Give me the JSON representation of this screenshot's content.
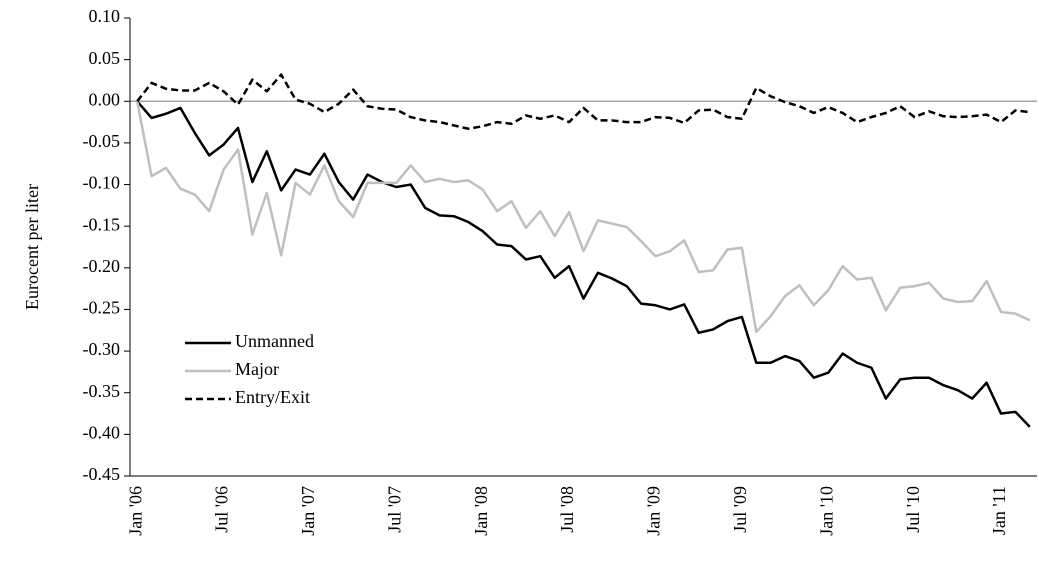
{
  "chart_data": {
    "type": "line",
    "y_label": "Eurocent per liter",
    "categories": [
      "Jan '06",
      null,
      null,
      null,
      null,
      null,
      "Jul '06",
      null,
      null,
      null,
      null,
      null,
      "Jan '07",
      null,
      null,
      null,
      null,
      null,
      "Jul '07",
      null,
      null,
      null,
      null,
      null,
      "Jan '08",
      null,
      null,
      null,
      null,
      null,
      "Jul '08",
      null,
      null,
      null,
      null,
      null,
      "Jan '09",
      null,
      null,
      null,
      null,
      null,
      "Jul '09",
      null,
      null,
      null,
      null,
      null,
      "Jan '10",
      null,
      null,
      null,
      null,
      null,
      "Jul '10",
      null,
      null,
      null,
      null,
      null,
      "Jan '11",
      null,
      null
    ],
    "series": [
      {
        "name": "Unmanned",
        "color": "#000000",
        "dash": "solid",
        "values": [
          0.0,
          -0.02,
          -0.015,
          -0.008,
          -0.038,
          -0.065,
          -0.052,
          -0.032,
          -0.097,
          -0.06,
          -0.107,
          -0.082,
          -0.088,
          -0.063,
          -0.097,
          -0.118,
          -0.088,
          -0.097,
          -0.103,
          -0.1,
          -0.128,
          -0.137,
          -0.138,
          -0.145,
          -0.156,
          -0.172,
          -0.174,
          -0.19,
          -0.186,
          -0.212,
          -0.198,
          -0.237,
          -0.206,
          -0.213,
          -0.222,
          -0.243,
          -0.245,
          -0.25,
          -0.244,
          -0.278,
          -0.274,
          -0.264,
          -0.259,
          -0.314,
          -0.314,
          -0.306,
          -0.312,
          -0.332,
          -0.326,
          -0.303,
          -0.314,
          -0.32,
          -0.357,
          -0.334,
          -0.332,
          -0.332,
          -0.341,
          -0.347,
          -0.357,
          -0.338,
          -0.375,
          -0.373,
          -0.391
        ]
      },
      {
        "name": "Major",
        "color": "#bfbfbf",
        "dash": "solid",
        "values": [
          0.0,
          -0.09,
          -0.08,
          -0.105,
          -0.112,
          -0.132,
          -0.082,
          -0.058,
          -0.16,
          -0.11,
          -0.185,
          -0.098,
          -0.112,
          -0.077,
          -0.12,
          -0.139,
          -0.098,
          -0.098,
          -0.098,
          -0.077,
          -0.097,
          -0.093,
          -0.097,
          -0.095,
          -0.106,
          -0.132,
          -0.12,
          -0.152,
          -0.132,
          -0.162,
          -0.133,
          -0.18,
          -0.143,
          -0.147,
          -0.151,
          -0.168,
          -0.186,
          -0.18,
          -0.167,
          -0.205,
          -0.203,
          -0.178,
          -0.176,
          -0.277,
          -0.258,
          -0.234,
          -0.221,
          -0.245,
          -0.227,
          -0.198,
          -0.214,
          -0.212,
          -0.251,
          -0.224,
          -0.222,
          -0.218,
          -0.237,
          -0.241,
          -0.24,
          -0.216,
          -0.253,
          -0.255,
          -0.263
        ]
      },
      {
        "name": "Entry/Exit",
        "color": "#000000",
        "dash": "dashed",
        "values": [
          0.0,
          0.022,
          0.015,
          0.013,
          0.013,
          0.022,
          0.012,
          -0.004,
          0.026,
          0.012,
          0.032,
          0.002,
          -0.003,
          -0.013,
          -0.003,
          0.014,
          -0.006,
          -0.009,
          -0.01,
          -0.019,
          -0.023,
          -0.025,
          -0.029,
          -0.033,
          -0.03,
          -0.025,
          -0.027,
          -0.017,
          -0.021,
          -0.017,
          -0.025,
          -0.008,
          -0.023,
          -0.023,
          -0.025,
          -0.025,
          -0.019,
          -0.02,
          -0.026,
          -0.011,
          -0.01,
          -0.019,
          -0.021,
          0.016,
          0.006,
          -0.001,
          -0.006,
          -0.014,
          -0.007,
          -0.014,
          -0.025,
          -0.019,
          -0.014,
          -0.006,
          -0.019,
          -0.012,
          -0.018,
          -0.019,
          -0.018,
          -0.016,
          -0.025,
          -0.011,
          -0.013
        ]
      }
    ],
    "ylim": [
      -0.45,
      0.1
    ],
    "yticks": [
      {
        "value": 0.1,
        "label": "0.10"
      },
      {
        "value": 0.05,
        "label": "0.05"
      },
      {
        "value": 0,
        "label": "0.00"
      },
      {
        "value": -0.05,
        "label": "-0.05"
      },
      {
        "value": -0.1,
        "label": "-0.10"
      },
      {
        "value": -0.15,
        "label": "-0.15"
      },
      {
        "value": -0.2,
        "label": "-0.20"
      },
      {
        "value": -0.25,
        "label": "-0.25"
      },
      {
        "value": -0.3,
        "label": "-0.30"
      },
      {
        "value": -0.35,
        "label": "-0.35"
      },
      {
        "value": -0.4,
        "label": "-0.40"
      },
      {
        "value": -0.45,
        "label": "-0.45"
      }
    ],
    "grid": false,
    "legend": "lower-left"
  }
}
